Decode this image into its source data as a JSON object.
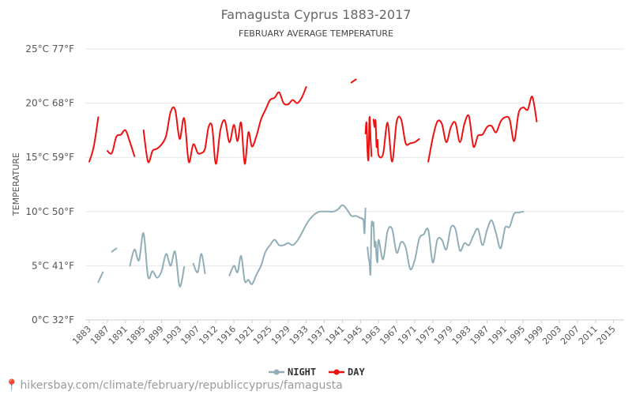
{
  "chart_data": {
    "type": "line",
    "title": "Famagusta Cyprus 1883-2017",
    "subtitle": "FEBRUARY AVERAGE TEMPERATURE",
    "ylabel": "TEMPERATURE",
    "ylim": [
      0,
      25
    ],
    "grid": true,
    "legend_position": "bottom",
    "y_ticks": [
      {
        "value": 0,
        "label": "0°C 32°F"
      },
      {
        "value": 5,
        "label": "5°C 41°F"
      },
      {
        "value": 10,
        "label": "10°C 50°F"
      },
      {
        "value": 15,
        "label": "15°C 59°F"
      },
      {
        "value": 20,
        "label": "20°C 68°F"
      },
      {
        "value": 25,
        "label": "25°C 77°F"
      }
    ],
    "x_ticks": [
      1883,
      1887,
      1891,
      1895,
      1899,
      1903,
      1907,
      1912,
      1916,
      1921,
      1925,
      1929,
      1933,
      1937,
      1941,
      1945,
      1963,
      1967,
      1971,
      1975,
      1979,
      1983,
      1987,
      1991,
      1995,
      1999,
      2003,
      2007,
      2011,
      2015
    ],
    "series": [
      {
        "name": "NIGHT",
        "color": "#90aeb8",
        "segments": [
          [
            [
              1885,
              3.5
            ],
            [
              1886,
              4.4
            ]
          ],
          [
            [
              1888,
              6.3
            ],
            [
              1889,
              6.6
            ]
          ],
          [
            [
              1892,
              5.0
            ],
            [
              1893,
              6.5
            ],
            [
              1894,
              5.5
            ],
            [
              1895,
              8.0
            ],
            [
              1896,
              4.0
            ],
            [
              1897,
              4.5
            ],
            [
              1898,
              3.9
            ],
            [
              1899,
              4.5
            ],
            [
              1900,
              6.1
            ],
            [
              1901,
              5.0
            ],
            [
              1902,
              6.3
            ],
            [
              1903,
              3.1
            ],
            [
              1904,
              4.9
            ]
          ],
          [
            [
              1906,
              5.2
            ],
            [
              1907,
              4.4
            ],
            [
              1908,
              6.1
            ],
            [
              1909,
              4.3
            ]
          ],
          [
            [
              1915,
              4.1
            ],
            [
              1916,
              5.0
            ],
            [
              1917,
              4.4
            ],
            [
              1918,
              5.9
            ],
            [
              1919,
              3.6
            ],
            [
              1920,
              3.7
            ],
            [
              1921,
              3.3
            ],
            [
              1922,
              4.2
            ],
            [
              1923,
              5.0
            ],
            [
              1924,
              6.3
            ],
            [
              1925,
              6.9
            ],
            [
              1926,
              7.4
            ],
            [
              1927,
              6.9
            ],
            [
              1928,
              6.9
            ],
            [
              1929,
              7.1
            ],
            [
              1930,
              6.9
            ],
            [
              1931,
              7.3
            ],
            [
              1932,
              8.0
            ],
            [
              1933,
              8.8
            ],
            [
              1934,
              9.4
            ],
            [
              1935,
              9.8
            ],
            [
              1936,
              10.0
            ],
            [
              1937,
              10.0
            ],
            [
              1938,
              10.0
            ],
            [
              1939,
              10.0
            ],
            [
              1940,
              10.2
            ],
            [
              1941,
              10.6
            ],
            [
              1942,
              10.2
            ],
            [
              1943,
              9.6
            ],
            [
              1944,
              9.6
            ],
            [
              1945,
              9.4
            ],
            [
              1946,
              9.4
            ],
            [
              1947,
              9.3
            ],
            [
              1948,
              9.2
            ],
            [
              1949,
              8.0
            ],
            [
              1950,
              10.3
            ]
          ],
          [
            [
              1952,
              6.7
            ],
            [
              1953,
              5.8
            ],
            [
              1954,
              5.3
            ],
            [
              1955,
              4.3
            ],
            [
              1956,
              8.8
            ],
            [
              1957,
              8.7
            ],
            [
              1958,
              8.9
            ],
            [
              1959,
              6.8
            ],
            [
              1960,
              7.2
            ],
            [
              1961,
              5.8
            ],
            [
              1962,
              5.4
            ],
            [
              1963,
              7.4
            ],
            [
              1964,
              5.6
            ],
            [
              1965,
              8.2
            ],
            [
              1966,
              8.4
            ],
            [
              1967,
              6.2
            ],
            [
              1968,
              7.2
            ],
            [
              1969,
              6.7
            ],
            [
              1970,
              4.7
            ],
            [
              1971,
              5.5
            ],
            [
              1972,
              7.5
            ],
            [
              1973,
              7.9
            ],
            [
              1974,
              8.3
            ],
            [
              1975,
              5.3
            ],
            [
              1976,
              7.4
            ],
            [
              1977,
              7.4
            ],
            [
              1978,
              6.5
            ],
            [
              1979,
              8.5
            ],
            [
              1980,
              8.4
            ],
            [
              1981,
              6.4
            ],
            [
              1982,
              7.1
            ],
            [
              1983,
              6.9
            ],
            [
              1984,
              7.8
            ],
            [
              1985,
              8.4
            ],
            [
              1986,
              6.9
            ],
            [
              1987,
              8.3
            ],
            [
              1988,
              9.2
            ],
            [
              1989,
              8.0
            ],
            [
              1990,
              6.6
            ],
            [
              1991,
              8.5
            ],
            [
              1992,
              8.6
            ],
            [
              1993,
              9.8
            ],
            [
              1994,
              9.9
            ],
            [
              1995,
              10.0
            ]
          ]
        ]
      },
      {
        "name": "DAY",
        "color": "#ee1111",
        "segments": [
          [
            [
              1883,
              14.6
            ],
            [
              1884,
              16.0
            ],
            [
              1885,
              18.7
            ]
          ],
          [
            [
              1887,
              15.6
            ],
            [
              1888,
              15.4
            ],
            [
              1889,
              16.9
            ],
            [
              1890,
              17.1
            ],
            [
              1891,
              17.5
            ],
            [
              1892,
              16.4
            ],
            [
              1893,
              15.1
            ]
          ],
          [
            [
              1895,
              17.5
            ],
            [
              1896,
              14.6
            ],
            [
              1897,
              15.6
            ],
            [
              1898,
              15.8
            ],
            [
              1899,
              16.2
            ],
            [
              1900,
              17.0
            ],
            [
              1901,
              19.2
            ],
            [
              1902,
              19.4
            ],
            [
              1903,
              16.7
            ],
            [
              1904,
              18.6
            ],
            [
              1905,
              14.6
            ],
            [
              1906,
              16.2
            ],
            [
              1907,
              15.4
            ],
            [
              1908,
              15.4
            ],
            [
              1909,
              15.8
            ],
            [
              1910,
              17.8
            ],
            [
              1911,
              17.8
            ],
            [
              1912,
              14.4
            ],
            [
              1913,
              17.5
            ],
            [
              1914,
              18.4
            ],
            [
              1915,
              16.4
            ],
            [
              1916,
              18.0
            ],
            [
              1917,
              16.5
            ],
            [
              1918,
              18.2
            ],
            [
              1919,
              14.4
            ],
            [
              1920,
              17.3
            ],
            [
              1921,
              16.0
            ],
            [
              1922,
              17.0
            ],
            [
              1923,
              18.5
            ],
            [
              1924,
              19.4
            ],
            [
              1925,
              20.3
            ],
            [
              1926,
              20.5
            ],
            [
              1927,
              21.0
            ],
            [
              1928,
              20.0
            ],
            [
              1929,
              19.9
            ],
            [
              1930,
              20.3
            ],
            [
              1931,
              20.0
            ],
            [
              1932,
              20.5
            ],
            [
              1933,
              21.5
            ]
          ],
          [
            [
              1943,
              21.9
            ],
            [
              1944,
              22.2
            ]
          ],
          [
            [
              1950,
              17.2
            ],
            [
              1951,
              18.2
            ],
            [
              1952,
              15.6
            ],
            [
              1953,
              14.9
            ],
            [
              1954,
              18.7
            ],
            [
              1955,
              16.8
            ],
            [
              1956,
              15.1
            ]
          ],
          [
            [
              1958,
              18.5
            ],
            [
              1959,
              17.8
            ],
            [
              1960,
              18.4
            ],
            [
              1961,
              16.0
            ],
            [
              1962,
              16.6
            ],
            [
              1963,
              15.2
            ],
            [
              1964,
              15.3
            ],
            [
              1965,
              18.2
            ],
            [
              1966,
              14.6
            ],
            [
              1967,
              18.3
            ],
            [
              1968,
              18.5
            ],
            [
              1969,
              16.3
            ],
            [
              1970,
              16.3
            ],
            [
              1971,
              16.4
            ],
            [
              1972,
              16.7
            ]
          ],
          [
            [
              1974,
              14.6
            ],
            [
              1975,
              16.8
            ],
            [
              1976,
              18.3
            ],
            [
              1977,
              18.1
            ],
            [
              1978,
              16.4
            ],
            [
              1979,
              17.8
            ],
            [
              1980,
              18.2
            ],
            [
              1981,
              16.4
            ],
            [
              1982,
              18.1
            ],
            [
              1983,
              18.8
            ],
            [
              1984,
              16.0
            ],
            [
              1985,
              17.0
            ],
            [
              1986,
              17.1
            ],
            [
              1987,
              17.8
            ],
            [
              1988,
              17.9
            ],
            [
              1989,
              17.3
            ],
            [
              1990,
              18.3
            ],
            [
              1991,
              18.7
            ],
            [
              1992,
              18.5
            ],
            [
              1993,
              16.5
            ],
            [
              1994,
              19.1
            ],
            [
              1995,
              19.6
            ],
            [
              1996,
              19.4
            ],
            [
              1997,
              20.6
            ],
            [
              1998,
              18.3
            ]
          ]
        ]
      }
    ]
  },
  "legend": {
    "night_label": "NIGHT",
    "day_label": "DAY"
  },
  "footer": {
    "url": "hikersbay.com/climate/february/republiccyprus/famagusta"
  }
}
